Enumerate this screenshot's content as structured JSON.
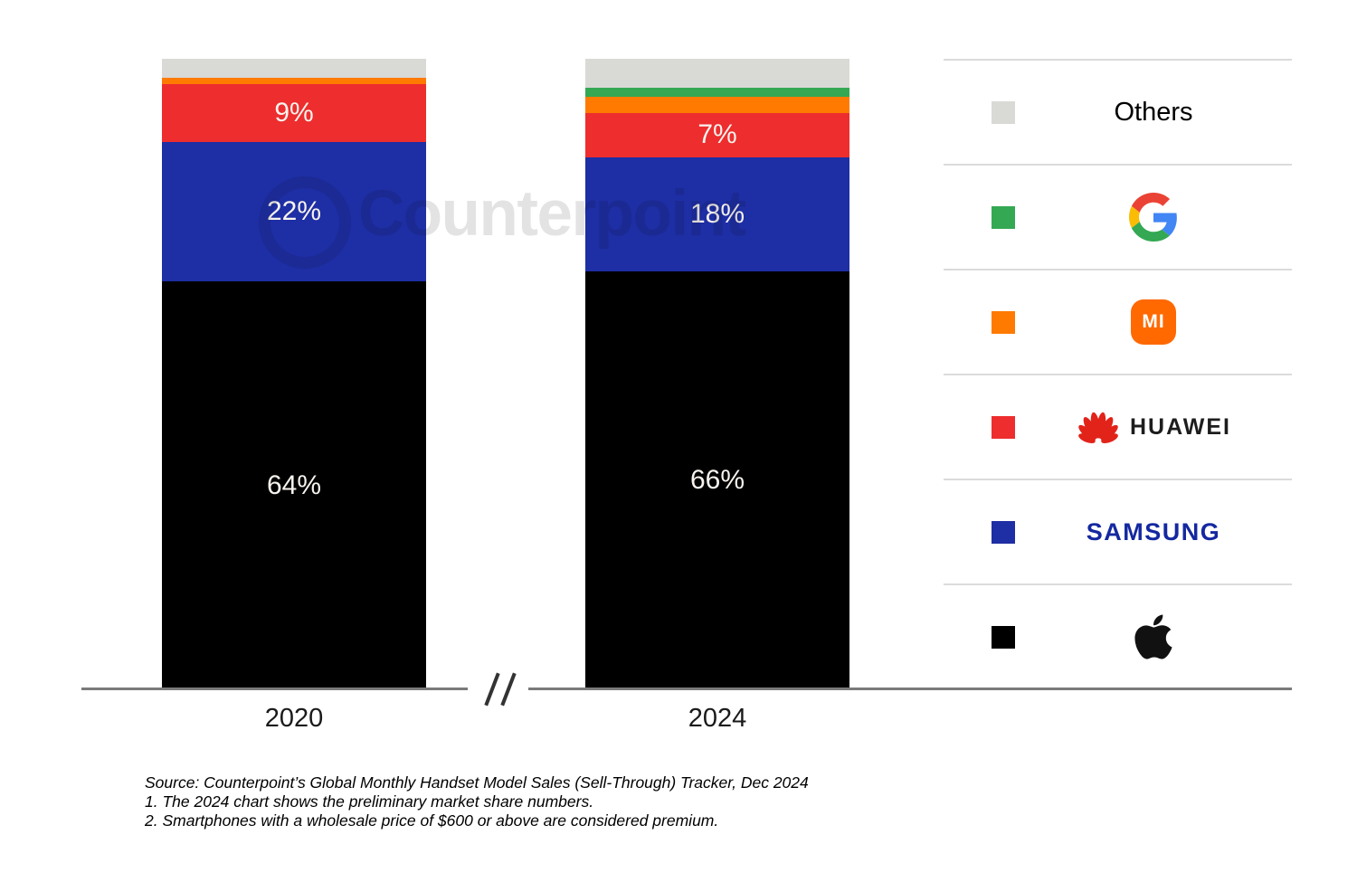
{
  "watermark": {
    "text": "Counterpoint"
  },
  "chart_data": {
    "type": "bar",
    "subtype": "stacked-percent-share",
    "title": "",
    "categories": [
      "2020",
      "2024"
    ],
    "stack_order_top_to_bottom": [
      "Others",
      "Google",
      "Xiaomi",
      "Huawei",
      "Samsung",
      "Apple"
    ],
    "series": [
      {
        "name": "Others",
        "color": "#D9D9D6",
        "values": [
          3,
          4.5
        ],
        "labels": [
          "",
          ""
        ]
      },
      {
        "name": "Google",
        "color": "#34A853",
        "values": [
          0,
          1.5
        ],
        "labels": [
          "",
          ""
        ]
      },
      {
        "name": "Xiaomi",
        "color": "#FF7A00",
        "values": [
          1,
          2.5
        ],
        "labels": [
          "",
          ""
        ]
      },
      {
        "name": "Huawei",
        "color": "#ED2D2E",
        "values": [
          9,
          7
        ],
        "labels": [
          "9%",
          "7%"
        ]
      },
      {
        "name": "Samsung",
        "color": "#1E2EA4",
        "values": [
          22,
          18
        ],
        "labels": [
          "22%",
          "18%"
        ]
      },
      {
        "name": "Apple",
        "color": "#000000",
        "values": [
          64,
          66
        ],
        "labels": [
          "64%",
          "66%"
        ]
      }
    ],
    "legend_position": "right",
    "grid": false,
    "axis_break_symbol": "//"
  },
  "legend": {
    "rows": [
      {
        "name": "Others",
        "swatch": "#D9D9D6",
        "label": "Others"
      },
      {
        "name": "Google",
        "swatch": "#34A853"
      },
      {
        "name": "Xiaomi",
        "swatch": "#FF7A00",
        "logo_text": "MI"
      },
      {
        "name": "Huawei",
        "swatch": "#ED2D2E",
        "logo_text": "HUAWEI"
      },
      {
        "name": "Samsung",
        "swatch": "#1E2EA4",
        "logo_text": "SAMSUNG"
      },
      {
        "name": "Apple",
        "swatch": "#000000"
      }
    ]
  },
  "source": {
    "line1": "Source: Counterpoint’s Global Monthly Handset Model Sales (Sell-Through) Tracker, Dec 2024",
    "line2": "1. The 2024 chart shows the preliminary market share numbers.",
    "line3": "2. Smartphones with a wholesale price of $600 or above are considered premium."
  }
}
